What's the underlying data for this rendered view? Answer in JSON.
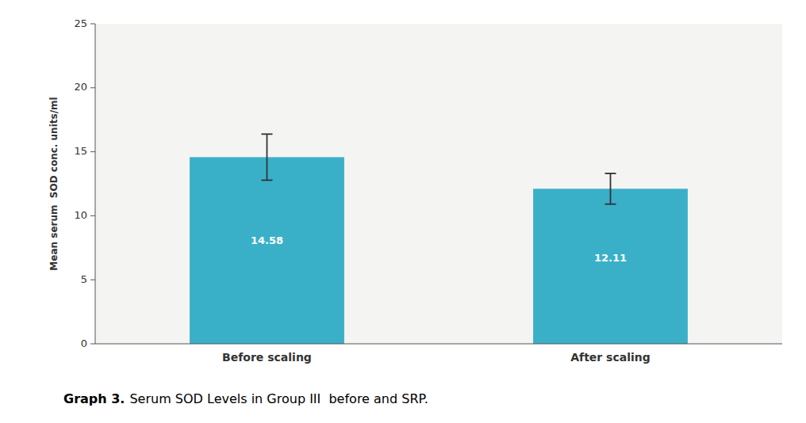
{
  "chart_data": {
    "type": "bar",
    "categories": [
      "Before scaling",
      "After scaling"
    ],
    "values": [
      14.58,
      12.11
    ],
    "errors": [
      1.8,
      1.2
    ],
    "color": "#3ab0c8",
    "ylabel": "Mean serum  SOD conc. units/ml",
    "ylim": [
      0,
      25
    ],
    "yticks": [
      0,
      5,
      10,
      15,
      20,
      25
    ],
    "grid": false,
    "data_labels": true,
    "caption": {
      "label": "Graph 3.",
      "text": "Serum SOD Levels in Group III  before and SRP."
    }
  }
}
